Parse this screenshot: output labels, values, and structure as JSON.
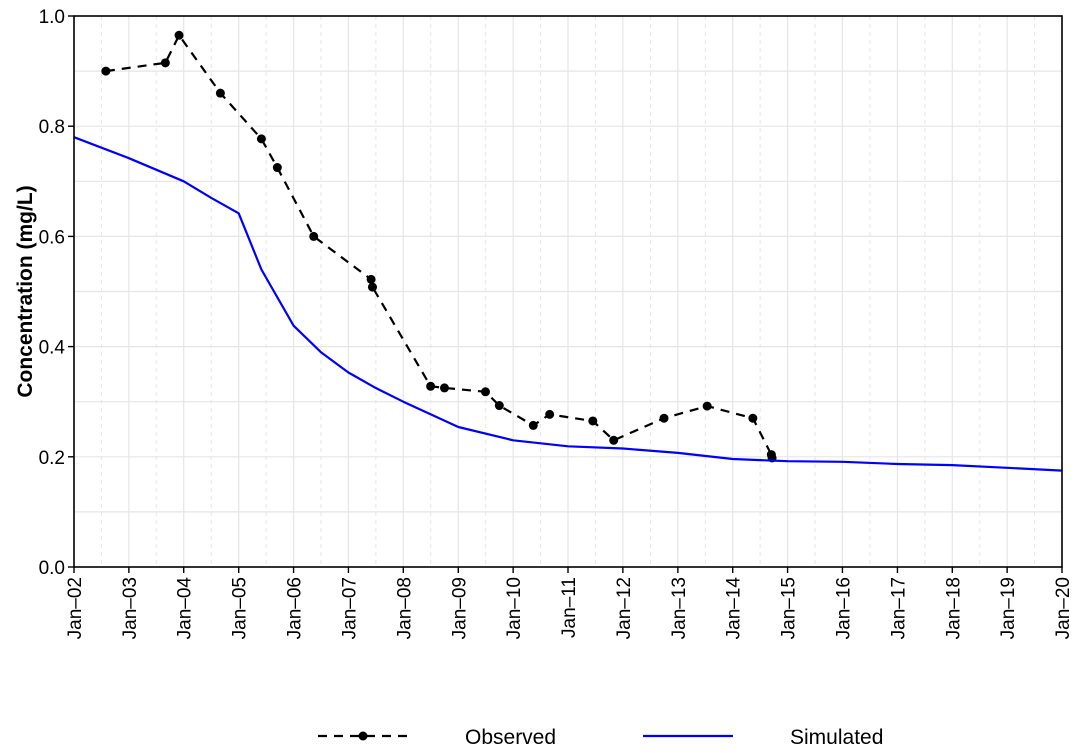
{
  "chart_data": {
    "type": "line",
    "title": "",
    "xlabel": "",
    "ylabel": "Concentration (mg/L)",
    "ylim": [
      0.0,
      1.0
    ],
    "xlim": [
      "2002-01-01",
      "2020-01-01"
    ],
    "y_ticks": [
      "0.0",
      "0.2",
      "0.4",
      "0.6",
      "0.8",
      "1.0"
    ],
    "x_tick_dates": [
      "2002-01-01",
      "2003-01-01",
      "2004-01-01",
      "2005-01-01",
      "2006-01-01",
      "2007-01-01",
      "2008-01-01",
      "2009-01-01",
      "2010-01-01",
      "2011-01-01",
      "2012-01-01",
      "2013-01-01",
      "2014-01-01",
      "2015-01-01",
      "2016-01-01",
      "2017-01-01",
      "2018-01-01",
      "2019-01-01",
      "2020-01-01"
    ],
    "x_tick_labels": [
      "Jan–02",
      "Jan–03",
      "Jan–04",
      "Jan–05",
      "Jan–06",
      "Jan–07",
      "Jan–08",
      "Jan–09",
      "Jan–10",
      "Jan–11",
      "Jan–12",
      "Jan–13",
      "Jan–14",
      "Jan–15",
      "Jan–16",
      "Jan–17",
      "Jan–18",
      "Jan–19",
      "Jan–20"
    ],
    "grid": true,
    "legend_position": "bottom",
    "series": [
      {
        "name": "Observed",
        "color": "#000000",
        "style": "dashed-with-points",
        "points": [
          [
            "2002-08-01",
            0.9
          ],
          [
            "2003-09-01",
            0.915
          ],
          [
            "2003-12-01",
            0.965
          ],
          [
            "2004-09-01",
            0.86
          ],
          [
            "2005-06-01",
            0.777
          ],
          [
            "2005-09-15",
            0.725
          ],
          [
            "2006-05-15",
            0.6
          ],
          [
            "2007-06-01",
            0.522
          ],
          [
            "2007-06-10",
            0.508
          ],
          [
            "2008-07-01",
            0.328
          ],
          [
            "2008-10-01",
            0.325
          ],
          [
            "2009-07-01",
            0.318
          ],
          [
            "2009-10-01",
            0.293
          ],
          [
            "2010-05-15",
            0.257
          ],
          [
            "2010-09-01",
            0.277
          ],
          [
            "2011-06-15",
            0.265
          ],
          [
            "2011-11-01",
            0.23
          ],
          [
            "2012-10-01",
            0.27
          ],
          [
            "2013-07-15",
            0.292
          ],
          [
            "2014-05-15",
            0.27
          ],
          [
            "2014-09-15",
            0.204
          ],
          [
            "2014-09-20",
            0.198
          ]
        ]
      },
      {
        "name": "Simulated",
        "color": "#0000ff",
        "style": "solid",
        "points": [
          [
            "2002-01-01",
            0.78
          ],
          [
            "2003-01-01",
            0.742
          ],
          [
            "2004-01-01",
            0.7
          ],
          [
            "2004-07-01",
            0.67
          ],
          [
            "2005-01-01",
            0.642
          ],
          [
            "2005-06-01",
            0.54
          ],
          [
            "2006-01-01",
            0.438
          ],
          [
            "2006-07-01",
            0.39
          ],
          [
            "2007-01-01",
            0.353
          ],
          [
            "2007-07-01",
            0.325
          ],
          [
            "2008-01-01",
            0.3
          ],
          [
            "2009-01-01",
            0.254
          ],
          [
            "2010-01-01",
            0.23
          ],
          [
            "2011-01-01",
            0.219
          ],
          [
            "2012-01-01",
            0.215
          ],
          [
            "2013-01-01",
            0.207
          ],
          [
            "2014-01-01",
            0.196
          ],
          [
            "2015-01-01",
            0.192
          ],
          [
            "2016-01-01",
            0.191
          ],
          [
            "2017-01-01",
            0.187
          ],
          [
            "2018-01-01",
            0.185
          ],
          [
            "2019-01-01",
            0.18
          ],
          [
            "2020-01-01",
            0.175
          ]
        ]
      }
    ]
  },
  "legend": {
    "observed_label": "Observed",
    "simulated_label": "Simulated"
  }
}
